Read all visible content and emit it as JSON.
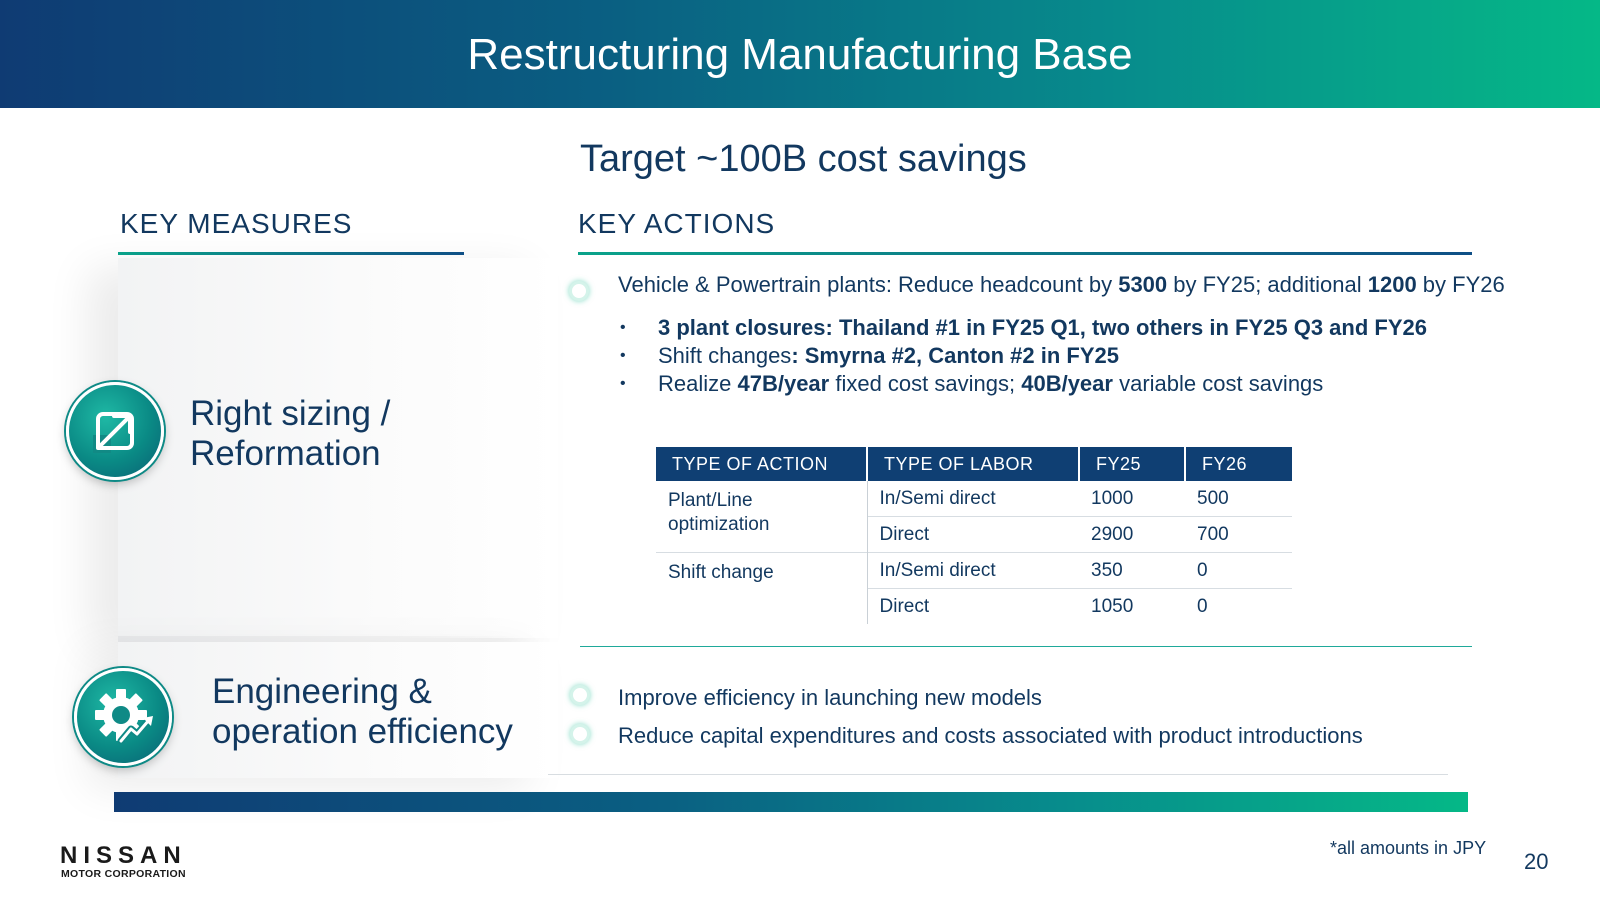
{
  "header": {
    "title": "Restructuring Manufacturing Base"
  },
  "target": "Target ~100B cost savings",
  "headings": {
    "measures": "KEY MEASURES",
    "actions": "KEY ACTIONS"
  },
  "measures": [
    {
      "label_line1": "Right sizing /",
      "label_line2": "Reformation",
      "icon": "resize-arrows-icon"
    },
    {
      "label_line1": "Engineering &",
      "label_line2": "operation efficiency",
      "icon": "gear-growth-icon"
    }
  ],
  "actions": {
    "headcount": {
      "pre": "Vehicle & Powertrain plants: Reduce headcount by ",
      "n1": "5300",
      "mid": " by FY25; additional ",
      "n2": "1200",
      "post": " by FY26"
    },
    "sub": {
      "closures": "3 plant closures: Thailand #1 in FY25 Q1, two others in FY25 Q3 and FY26",
      "shift_pre": "Shift changes",
      "shift_bold": ": Smyrna #2, Canton #2 in FY25",
      "realize_pre": "Realize ",
      "fixed_bold": "47B/year",
      "fixed_post": " fixed cost savings; ",
      "variable_bold": "40B/year",
      "variable_post": " variable cost savings"
    },
    "efficiency": [
      "Improve efficiency in launching new models",
      "Reduce capital expenditures and costs associated with product introductions"
    ]
  },
  "table": {
    "headers": [
      "TYPE OF ACTION",
      "TYPE OF LABOR",
      "FY25",
      "FY26"
    ],
    "groups": [
      {
        "action_line1": "Plant/Line",
        "action_line2": "optimization",
        "rows": [
          {
            "labor": "In/Semi direct",
            "fy25": "1000",
            "fy26": "500"
          },
          {
            "labor": "Direct",
            "fy25": "2900",
            "fy26": "700"
          }
        ]
      },
      {
        "action_line1": "Shift change",
        "rows": [
          {
            "labor": "In/Semi direct",
            "fy25": "350",
            "fy26": "0"
          },
          {
            "labor": "Direct",
            "fy25": "1050",
            "fy26": "0"
          }
        ]
      }
    ]
  },
  "footer": {
    "logo": "NISSAN",
    "logo_sub": "MOTOR CORPORATION",
    "footnote": "*all amounts in JPY",
    "page_number": "20"
  },
  "colors": {
    "navy": "#12385f",
    "teal": "#0a8a85",
    "header_start": "#0f3b73",
    "header_end": "#05b887"
  }
}
